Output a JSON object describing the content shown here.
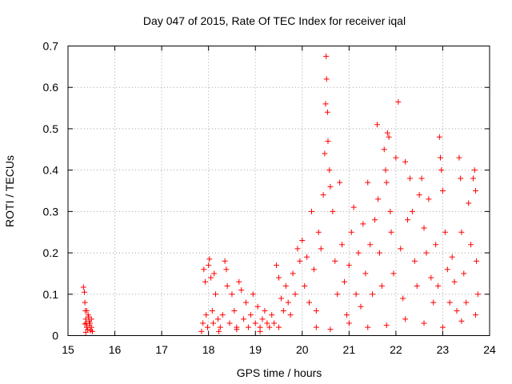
{
  "chart_data": {
    "type": "scatter",
    "title": "Day 047 of 2015, Rate Of TEC Index for receiver iqal",
    "xlabel": "GPS time / hours",
    "ylabel": "ROTI / TECUs",
    "xlim": [
      15,
      24
    ],
    "ylim": [
      0,
      0.7
    ],
    "x_ticks": [
      "15",
      "16",
      "17",
      "18",
      "19",
      "20",
      "21",
      "22",
      "23",
      "24"
    ],
    "y_ticks": [
      "0",
      "0.1",
      "0.2",
      "0.3",
      "0.4",
      "0.5",
      "0.6",
      "0.7"
    ],
    "grid": true,
    "marker": "+",
    "color": "#ff0000",
    "series": [
      {
        "points": [
          [
            15.33,
            0.117
          ],
          [
            15.35,
            0.105
          ],
          [
            15.36,
            0.08
          ],
          [
            15.37,
            0.06
          ],
          [
            15.38,
            0.04
          ],
          [
            15.39,
            0.03
          ],
          [
            15.4,
            0.02
          ],
          [
            15.42,
            0.015
          ],
          [
            15.43,
            0.05
          ],
          [
            15.45,
            0.035
          ],
          [
            15.46,
            0.025
          ],
          [
            15.48,
            0.012
          ],
          [
            15.5,
            0.02
          ],
          [
            15.52,
            0.01
          ],
          [
            15.4,
            0.06
          ],
          [
            15.44,
            0.045
          ],
          [
            15.47,
            0.03
          ],
          [
            15.36,
            0.028
          ],
          [
            15.38,
            0.008
          ],
          [
            15.5,
            0.04
          ],
          [
            17.85,
            0.01
          ],
          [
            17.88,
            0.03
          ],
          [
            17.9,
            0.16
          ],
          [
            17.93,
            0.13
          ],
          [
            17.95,
            0.05
          ],
          [
            17.98,
            0.02
          ],
          [
            18.0,
            0.17
          ],
          [
            18.02,
            0.185
          ],
          [
            18.05,
            0.14
          ],
          [
            18.08,
            0.06
          ],
          [
            18.1,
            0.03
          ],
          [
            18.12,
            0.15
          ],
          [
            18.15,
            0.1
          ],
          [
            18.2,
            0.04
          ],
          [
            18.25,
            0.02
          ],
          [
            18.3,
            0.05
          ],
          [
            18.35,
            0.18
          ],
          [
            18.38,
            0.16
          ],
          [
            18.4,
            0.12
          ],
          [
            18.45,
            0.03
          ],
          [
            18.5,
            0.1
          ],
          [
            18.55,
            0.06
          ],
          [
            18.6,
            0.02
          ],
          [
            18.65,
            0.13
          ],
          [
            18.7,
            0.11
          ],
          [
            18.75,
            0.04
          ],
          [
            18.8,
            0.08
          ],
          [
            18.85,
            0.02
          ],
          [
            18.9,
            0.05
          ],
          [
            18.95,
            0.1
          ],
          [
            19.0,
            0.03
          ],
          [
            19.05,
            0.07
          ],
          [
            19.1,
            0.02
          ],
          [
            19.15,
            0.04
          ],
          [
            19.2,
            0.06
          ],
          [
            19.25,
            0.03
          ],
          [
            19.3,
            0.02
          ],
          [
            19.35,
            0.05
          ],
          [
            19.4,
            0.03
          ],
          [
            19.45,
            0.17
          ],
          [
            19.5,
            0.14
          ],
          [
            19.55,
            0.09
          ],
          [
            19.6,
            0.06
          ],
          [
            19.65,
            0.12
          ],
          [
            19.7,
            0.08
          ],
          [
            19.75,
            0.05
          ],
          [
            19.8,
            0.15
          ],
          [
            19.85,
            0.1
          ],
          [
            19.9,
            0.21
          ],
          [
            19.95,
            0.18
          ],
          [
            18.22,
            0.01
          ],
          [
            18.6,
            0.015
          ],
          [
            19.1,
            0.01
          ],
          [
            19.5,
            0.02
          ],
          [
            20.0,
            0.23
          ],
          [
            20.05,
            0.12
          ],
          [
            20.1,
            0.19
          ],
          [
            20.15,
            0.08
          ],
          [
            20.2,
            0.3
          ],
          [
            20.25,
            0.16
          ],
          [
            20.3,
            0.06
          ],
          [
            20.35,
            0.25
          ],
          [
            20.4,
            0.21
          ],
          [
            20.45,
            0.34
          ],
          [
            20.48,
            0.44
          ],
          [
            20.5,
            0.56
          ],
          [
            20.51,
            0.675
          ],
          [
            20.52,
            0.62
          ],
          [
            20.54,
            0.54
          ],
          [
            20.55,
            0.47
          ],
          [
            20.58,
            0.4
          ],
          [
            20.6,
            0.36
          ],
          [
            20.65,
            0.3
          ],
          [
            20.7,
            0.18
          ],
          [
            20.75,
            0.1
          ],
          [
            20.8,
            0.37
          ],
          [
            20.85,
            0.22
          ],
          [
            20.9,
            0.13
          ],
          [
            20.95,
            0.05
          ],
          [
            21.0,
            0.17
          ],
          [
            21.05,
            0.25
          ],
          [
            21.1,
            0.31
          ],
          [
            21.15,
            0.1
          ],
          [
            21.2,
            0.2
          ],
          [
            21.25,
            0.07
          ],
          [
            21.3,
            0.27
          ],
          [
            21.35,
            0.15
          ],
          [
            21.4,
            0.37
          ],
          [
            21.45,
            0.22
          ],
          [
            21.5,
            0.1
          ],
          [
            21.55,
            0.28
          ],
          [
            21.6,
            0.51
          ],
          [
            21.62,
            0.33
          ],
          [
            21.65,
            0.2
          ],
          [
            21.7,
            0.12
          ],
          [
            21.75,
            0.45
          ],
          [
            21.78,
            0.4
          ],
          [
            21.8,
            0.37
          ],
          [
            21.82,
            0.49
          ],
          [
            21.85,
            0.48
          ],
          [
            21.88,
            0.3
          ],
          [
            21.9,
            0.25
          ],
          [
            21.95,
            0.15
          ],
          [
            22.0,
            0.43
          ],
          [
            22.05,
            0.565
          ],
          [
            22.1,
            0.21
          ],
          [
            22.15,
            0.09
          ],
          [
            22.2,
            0.42
          ],
          [
            22.25,
            0.28
          ],
          [
            22.3,
            0.38
          ],
          [
            22.35,
            0.3
          ],
          [
            22.4,
            0.18
          ],
          [
            22.45,
            0.12
          ],
          [
            22.5,
            0.34
          ],
          [
            22.55,
            0.38
          ],
          [
            22.6,
            0.26
          ],
          [
            22.65,
            0.2
          ],
          [
            22.7,
            0.33
          ],
          [
            22.75,
            0.14
          ],
          [
            22.8,
            0.08
          ],
          [
            22.85,
            0.22
          ],
          [
            22.9,
            0.12
          ],
          [
            22.93,
            0.48
          ],
          [
            22.95,
            0.43
          ],
          [
            22.97,
            0.4
          ],
          [
            23.0,
            0.35
          ],
          [
            23.05,
            0.25
          ],
          [
            23.1,
            0.16
          ],
          [
            23.15,
            0.08
          ],
          [
            23.2,
            0.19
          ],
          [
            23.25,
            0.13
          ],
          [
            23.3,
            0.06
          ],
          [
            23.35,
            0.43
          ],
          [
            23.38,
            0.38
          ],
          [
            23.4,
            0.25
          ],
          [
            23.45,
            0.15
          ],
          [
            23.5,
            0.08
          ],
          [
            23.55,
            0.32
          ],
          [
            23.6,
            0.22
          ],
          [
            23.65,
            0.38
          ],
          [
            23.68,
            0.4
          ],
          [
            23.7,
            0.35
          ],
          [
            23.72,
            0.18
          ],
          [
            23.75,
            0.1
          ],
          [
            20.3,
            0.02
          ],
          [
            20.6,
            0.015
          ],
          [
            21.0,
            0.03
          ],
          [
            21.4,
            0.02
          ],
          [
            21.8,
            0.025
          ],
          [
            22.2,
            0.04
          ],
          [
            22.6,
            0.03
          ],
          [
            23.0,
            0.02
          ],
          [
            23.4,
            0.035
          ],
          [
            23.7,
            0.05
          ]
        ]
      }
    ]
  }
}
